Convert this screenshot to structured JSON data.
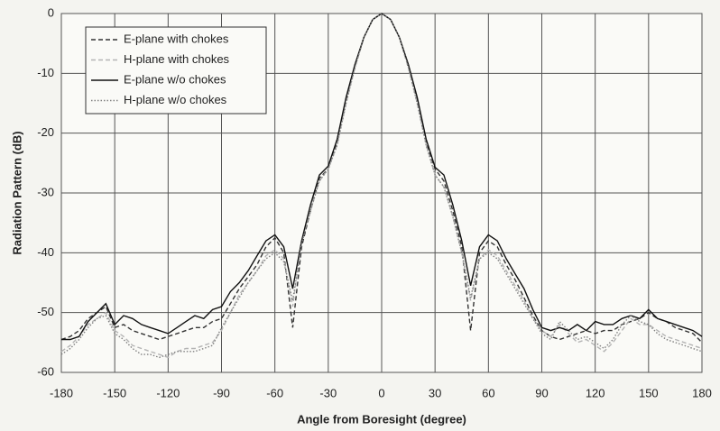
{
  "chart_data": {
    "type": "line",
    "x_label": "Angle from Boresight (degree)",
    "y_label": "Radiation Pattern (dB)",
    "x": [
      -180,
      -175,
      -170,
      -165,
      -160,
      -155,
      -150,
      -145,
      -140,
      -135,
      -130,
      -125,
      -120,
      -115,
      -110,
      -105,
      -100,
      -95,
      -90,
      -85,
      -80,
      -75,
      -70,
      -65,
      -60,
      -55,
      -50,
      -45,
      -40,
      -35,
      -30,
      -25,
      -20,
      -15,
      -10,
      -5,
      0,
      5,
      10,
      15,
      20,
      25,
      30,
      35,
      40,
      45,
      50,
      55,
      60,
      65,
      70,
      75,
      80,
      85,
      90,
      95,
      100,
      105,
      110,
      115,
      120,
      125,
      130,
      135,
      140,
      145,
      150,
      155,
      160,
      165,
      170,
      175,
      180
    ],
    "xlim": [
      -180,
      180
    ],
    "xticks": [
      -180,
      -150,
      -120,
      -90,
      -60,
      -30,
      0,
      30,
      60,
      90,
      120,
      150,
      180
    ],
    "ylim": [
      -60,
      0
    ],
    "yticks": [
      -60,
      -50,
      -40,
      -30,
      -20,
      -10,
      0
    ],
    "grid": true,
    "legend": "upper left",
    "series": [
      {
        "name": "E-plane with chokes",
        "color": "#333333",
        "style": "dashed",
        "values": [
          -54.5,
          -54,
          -53,
          -51,
          -50,
          -49,
          -52.5,
          -52,
          -53,
          -53.5,
          -54,
          -54.5,
          -54,
          -53.5,
          -53,
          -52.5,
          -52.5,
          -51.5,
          -51,
          -48.5,
          -46,
          -44,
          -42,
          -39,
          -37.5,
          -40,
          -52.5,
          -39,
          -33,
          -27.5,
          -26,
          -21.5,
          -14.5,
          -9,
          -4,
          -1,
          0,
          -1,
          -4,
          -9,
          -14.5,
          -21.5,
          -26,
          -28,
          -33,
          -39,
          -53,
          -40,
          -38,
          -39,
          -42,
          -44.5,
          -47.5,
          -50.5,
          -53,
          -54,
          -54.5,
          -54,
          -53.5,
          -53,
          -53.5,
          -53,
          -53,
          -52,
          -51.5,
          -51,
          -50,
          -51,
          -51.5,
          -52.5,
          -53,
          -53.5,
          -55
        ]
      },
      {
        "name": "H-plane with chokes",
        "color": "#b4b4b4",
        "style": "dashed",
        "values": [
          -56.5,
          -55.5,
          -54,
          -52,
          -51,
          -50,
          -53,
          -54,
          -55.5,
          -56,
          -56.5,
          -57,
          -57.5,
          -56.5,
          -56,
          -56,
          -55.5,
          -55,
          -53,
          -50,
          -47,
          -45,
          -43,
          -40.5,
          -39.5,
          -41,
          -49,
          -38,
          -33,
          -28,
          -26,
          -22,
          -15,
          -9,
          -4,
          -1,
          0,
          -1,
          -4,
          -9,
          -15,
          -22,
          -27,
          -29,
          -34,
          -40,
          -48,
          -41,
          -39.5,
          -40.5,
          -43,
          -45.5,
          -48,
          -51,
          -53,
          -54,
          -52,
          -53.5,
          -55,
          -54.5,
          -55.5,
          -56.5,
          -55,
          -53,
          -51,
          -52,
          -52,
          -53,
          -54,
          -54.5,
          -55,
          -55.5,
          -56
        ]
      },
      {
        "name": "E-plane w/o chokes",
        "color": "#111111",
        "style": "solid",
        "values": [
          -54.5,
          -54.5,
          -54,
          -51.5,
          -50,
          -48.5,
          -52,
          -50.5,
          -51,
          -52,
          -52.5,
          -53,
          -53.5,
          -52.5,
          -51.5,
          -50.5,
          -51,
          -49.5,
          -49,
          -46.5,
          -45,
          -43,
          -40.5,
          -38,
          -37,
          -39,
          -46,
          -38,
          -32,
          -27,
          -25.5,
          -21,
          -14,
          -8.5,
          -4,
          -1,
          0,
          -1,
          -4,
          -8.5,
          -14,
          -21,
          -25.7,
          -27,
          -32,
          -38,
          -45.5,
          -39,
          -37,
          -38,
          -41,
          -43.5,
          -46,
          -49.5,
          -52.5,
          -53,
          -52.5,
          -53,
          -52,
          -53,
          -51.5,
          -52,
          -52,
          -51,
          -50.5,
          -51,
          -49.5,
          -51,
          -51.5,
          -52,
          -52.5,
          -53,
          -54
        ]
      },
      {
        "name": "H-plane w/o chokes",
        "color": "#808080",
        "style": "dotted",
        "values": [
          -57,
          -56,
          -54.5,
          -52.5,
          -51,
          -50.5,
          -53.5,
          -54.5,
          -56,
          -57,
          -57,
          -57.5,
          -57,
          -56.5,
          -56.5,
          -56.5,
          -56,
          -55.5,
          -52.5,
          -50,
          -47.5,
          -45,
          -43,
          -41,
          -40,
          -41.5,
          -48,
          -38.5,
          -33,
          -28,
          -26,
          -22,
          -15,
          -9,
          -4,
          -1,
          0,
          -1,
          -4,
          -9,
          -15,
          -22,
          -27,
          -29,
          -34,
          -40,
          -47.5,
          -41,
          -40,
          -41,
          -43.5,
          -46,
          -48.5,
          -51,
          -53.5,
          -54.5,
          -51.5,
          -53,
          -54.5,
          -54,
          -55,
          -56,
          -54.5,
          -52,
          -50.5,
          -51.5,
          -52,
          -53.5,
          -54.5,
          -55,
          -55.5,
          -56,
          -56.5
        ]
      }
    ]
  }
}
